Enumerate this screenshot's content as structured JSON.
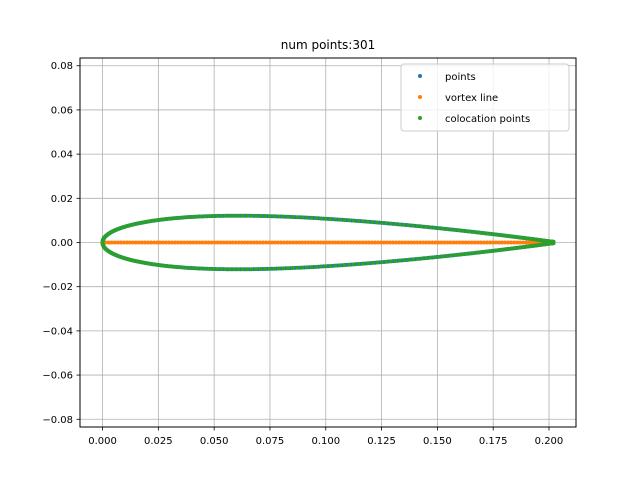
{
  "chart_data": {
    "type": "scatter",
    "title": "num points:301",
    "xlabel": "",
    "ylabel": "",
    "xlim": [
      -0.0101,
      0.2121
    ],
    "ylim": [
      -0.0835,
      0.0835
    ],
    "x_ticks": [
      0.0,
      0.025,
      0.05,
      0.075,
      0.1,
      0.125,
      0.15,
      0.175,
      0.2
    ],
    "x_tick_labels": [
      "0.000",
      "0.025",
      "0.050",
      "0.075",
      "0.100",
      "0.125",
      "0.150",
      "0.175",
      "0.200"
    ],
    "y_ticks": [
      -0.08,
      -0.06,
      -0.04,
      -0.02,
      0.0,
      0.02,
      0.04,
      0.06,
      0.08
    ],
    "y_tick_labels": [
      "−0.08",
      "−0.06",
      "−0.04",
      "−0.02",
      "0.00",
      "0.02",
      "0.04",
      "0.06",
      "0.08"
    ],
    "grid": true,
    "legend_position": "top-right",
    "airfoil": {
      "chord": 0.202,
      "thickness_ratio": 0.12
    },
    "series": [
      {
        "name": "points",
        "color": "#1f77b4",
        "count": 301,
        "shape": "airfoil outline (NACA 0012 profile, chord 0.202)"
      },
      {
        "name": "vortex line",
        "color": "#ff7f0e",
        "count": 150,
        "shape": "camber line y = 0 from x = 0 to x = 0.202"
      },
      {
        "name": "colocation points",
        "color": "#2ca02c",
        "count": 300,
        "shape": "airfoil outline (NACA 0012 profile, chord 0.202)"
      }
    ]
  }
}
